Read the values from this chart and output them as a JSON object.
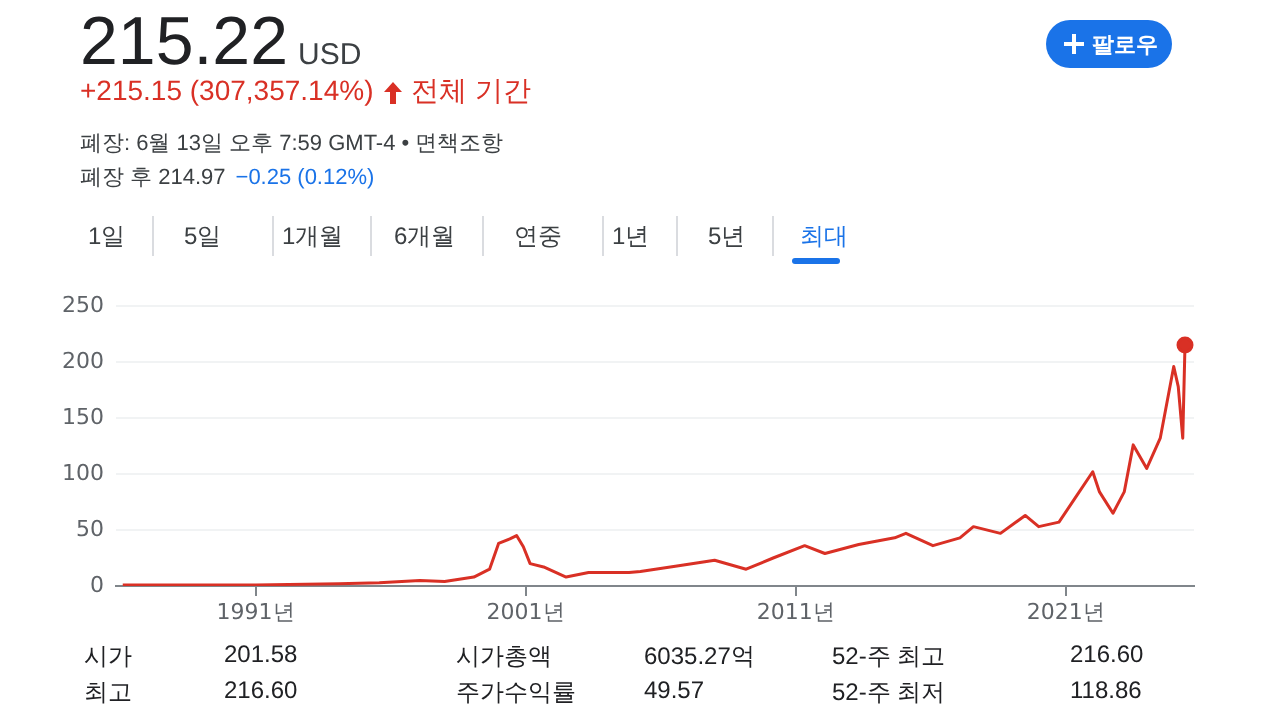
{
  "chart_data": {
    "type": "line",
    "color": "#d93025",
    "marker": "none",
    "grid": "y",
    "legend": false,
    "x": [
      "1986-02",
      "1991-01",
      "1994-02",
      "1995-08",
      "1997-02",
      "1998-01",
      "1999-02",
      "1999-09",
      "2000-01",
      "2000-06",
      "2000-09",
      "2000-12",
      "2001-03",
      "2001-09",
      "2002-07",
      "2003-05",
      "2004-11",
      "2005-04",
      "2006-09",
      "2008-01",
      "2009-03",
      "2010-03",
      "2011-05",
      "2012-02",
      "2013-05",
      "2014-09",
      "2015-02",
      "2016-02",
      "2017-02",
      "2017-08",
      "2018-08",
      "2019-07",
      "2020-01",
      "2020-10",
      "2021-05",
      "2022-01",
      "2022-04",
      "2022-10",
      "2023-03",
      "2023-07",
      "2024-01",
      "2024-07",
      "2025-01",
      "2025-03",
      "2025-05",
      "2025-06"
    ],
    "values": [
      1,
      1,
      2,
      3,
      5,
      4,
      8,
      15,
      38,
      42,
      45,
      35,
      20,
      17,
      8,
      12,
      12,
      13,
      18,
      23,
      15,
      25,
      36,
      29,
      37,
      43,
      47,
      36,
      43,
      53,
      47,
      63,
      53,
      57,
      78,
      102,
      84,
      65,
      84,
      126,
      105,
      132,
      196,
      178,
      132,
      215.22
    ],
    "xlim": [
      "1985-11",
      "2025-10"
    ],
    "xticks": [
      {
        "value": "1991-01",
        "label": "1991년"
      },
      {
        "value": "2001-01",
        "label": "2001년"
      },
      {
        "value": "2011-01",
        "label": "2011년"
      },
      {
        "value": "2021-01",
        "label": "2021년"
      }
    ],
    "ylim": [
      0,
      250
    ],
    "yticks": [
      0,
      50,
      100,
      150,
      200,
      250
    ],
    "annotations": [
      "215.22",
      "USD",
      "+215.15 (307,357.14%)",
      "전체 기간",
      "폐장: 6월 13일 오후 7:59 GMT-4 • 면책조항",
      "폐장 후 214.97",
      "−0.25 (0.12%)",
      "팔로우",
      "1일",
      "5일",
      "1개월",
      "6개월",
      "연중",
      "1년",
      "5년",
      "최대",
      "시가",
      "201.58",
      "시가총액",
      "6035.27억",
      "52-주 최고",
      "216.60",
      "최고",
      "216.60",
      "주가수익률",
      "49.57",
      "52-주 최저",
      "118.86"
    ]
  }
}
